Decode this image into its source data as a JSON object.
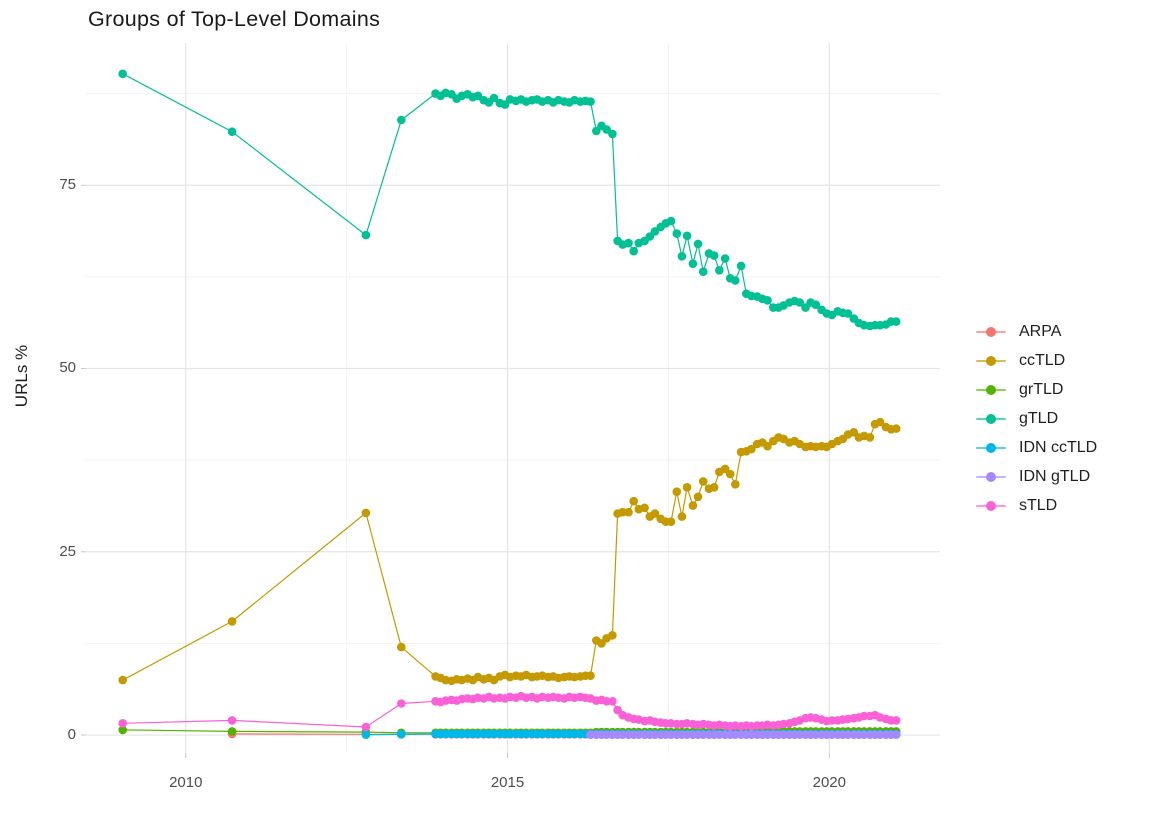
{
  "title": "Groups of Top-Level Domains",
  "y_axis_title": "URLs %",
  "chart_data": {
    "type": "line",
    "title": "Groups of Top-Level Domains",
    "xlabel": "",
    "ylabel": "URLs %",
    "legend_position": "right",
    "grid": true,
    "markers": true,
    "xlim": [
      2008.45,
      2021.72
    ],
    "ylim": [
      -2.45,
      94.4
    ],
    "x_tick_values": [
      2010,
      2015,
      2020
    ],
    "x_tick_labels": [
      "2010",
      "2015",
      "2020"
    ],
    "x_minor_ticks": [
      2012.5,
      2017.5
    ],
    "y_tick_values": [
      0,
      25,
      50,
      75
    ],
    "y_tick_labels": [
      "0",
      "25",
      "50",
      "75"
    ],
    "y_minor_ticks": [
      12.5,
      37.5,
      62.5,
      87.5
    ],
    "grid_major_color": "#e4e4e4",
    "grid_minor_color": "#f2f2f2",
    "axis_text_color": "#4d4d4d",
    "x_dense": [
      2013.88,
      2013.96,
      2014.04,
      2014.13,
      2014.21,
      2014.29,
      2014.38,
      2014.46,
      2014.54,
      2014.63,
      2014.71,
      2014.79,
      2014.88,
      2014.96,
      2015.04,
      2015.13,
      2015.21,
      2015.29,
      2015.38,
      2015.46,
      2015.54,
      2015.63,
      2015.71,
      2015.79,
      2015.88,
      2015.96,
      2016.04,
      2016.13,
      2016.21,
      2016.29,
      2016.38,
      2016.46,
      2016.54,
      2016.63,
      2016.71,
      2016.79,
      2016.88,
      2016.96,
      2017.04,
      2017.13,
      2017.21,
      2017.29,
      2017.38,
      2017.46,
      2017.54,
      2017.63,
      2017.71,
      2017.79,
      2017.88,
      2017.96,
      2018.04,
      2018.13,
      2018.21,
      2018.29,
      2018.38,
      2018.46,
      2018.54,
      2018.63,
      2018.71,
      2018.79,
      2018.88,
      2018.96,
      2019.04,
      2019.13,
      2019.21,
      2019.29,
      2019.38,
      2019.46,
      2019.54,
      2019.63,
      2019.71,
      2019.79,
      2019.88,
      2019.96,
      2020.04,
      2020.13,
      2020.21,
      2020.29,
      2020.38,
      2020.46,
      2020.54,
      2020.63,
      2020.71,
      2020.79,
      2020.88,
      2020.96,
      2021.04
    ],
    "series": [
      {
        "name": "ARPA",
        "color": "#F8766D",
        "dense_from": 0,
        "x_pre": [
          2010.72,
          2012.8,
          2013.35
        ],
        "y_pre": [
          0.15,
          0.1,
          0.1
        ],
        "y_const": 0.1
      },
      {
        "name": "ccTLD",
        "color": "#C49A00",
        "dense_from": 0,
        "x_pre": [
          2009.02,
          2010.72,
          2012.8,
          2013.35
        ],
        "y_pre": [
          7.5,
          15.5,
          30.3,
          12.0
        ],
        "y_dense": [
          8.0,
          7.8,
          7.5,
          7.4,
          7.6,
          7.5,
          7.7,
          7.5,
          7.9,
          7.6,
          7.8,
          7.5,
          8.0,
          8.2,
          7.9,
          8.1,
          8.0,
          8.2,
          7.9,
          8.0,
          8.1,
          7.9,
          8.0,
          7.8,
          7.9,
          8.0,
          7.9,
          8.0,
          8.1,
          8.1,
          12.9,
          12.5,
          13.2,
          13.6,
          30.2,
          30.4,
          30.4,
          31.9,
          30.8,
          31.0,
          29.8,
          30.2,
          29.5,
          29.1,
          29.1,
          33.2,
          29.8,
          33.8,
          31.3,
          32.5,
          34.6,
          33.6,
          33.8,
          35.9,
          36.3,
          35.6,
          34.2,
          38.6,
          38.7,
          39.0,
          39.7,
          39.9,
          39.4,
          40.1,
          40.6,
          40.4,
          39.9,
          40.1,
          39.7,
          39.3,
          39.4,
          39.3,
          39.4,
          39.3,
          39.7,
          40.1,
          40.4,
          41.0,
          41.3,
          40.6,
          40.8,
          40.6,
          42.4,
          42.7,
          42.0,
          41.7,
          41.8
        ]
      },
      {
        "name": "grTLD",
        "color": "#53B400",
        "dense_from": 0,
        "x_pre": [
          2009.02,
          2010.72,
          2012.8,
          2013.35
        ],
        "y_pre": [
          0.7,
          0.5,
          0.4,
          0.3
        ],
        "y_dense": [
          0.3,
          0.3,
          0.3,
          0.3,
          0.3,
          0.3,
          0.3,
          0.3,
          0.3,
          0.3,
          0.3,
          0.3,
          0.3,
          0.3,
          0.3,
          0.3,
          0.3,
          0.3,
          0.3,
          0.3,
          0.3,
          0.3,
          0.3,
          0.3,
          0.3,
          0.3,
          0.3,
          0.3,
          0.3,
          0.3,
          0.4,
          0.4,
          0.4,
          0.4,
          0.4,
          0.4,
          0.4,
          0.4,
          0.4,
          0.4,
          0.4,
          0.4,
          0.4,
          0.4,
          0.4,
          0.4,
          0.4,
          0.4,
          0.4,
          0.4,
          0.4,
          0.4,
          0.4,
          0.4,
          0.4,
          0.4,
          0.4,
          0.5,
          0.5,
          0.5,
          0.5,
          0.5,
          0.5,
          0.5,
          0.5,
          0.5,
          0.5,
          0.5,
          0.5,
          0.5,
          0.5,
          0.5,
          0.5,
          0.5,
          0.5,
          0.5,
          0.5,
          0.5,
          0.5,
          0.5,
          0.5,
          0.5,
          0.5,
          0.5,
          0.5,
          0.5,
          0.5
        ]
      },
      {
        "name": "gTLD",
        "color": "#00C094",
        "dense_from": 0,
        "x_pre": [
          2009.02,
          2010.72,
          2012.8,
          2013.35
        ],
        "y_pre": [
          90.2,
          82.3,
          68.2,
          83.9
        ],
        "y_dense": [
          87.5,
          87.2,
          87.6,
          87.4,
          86.8,
          87.2,
          87.4,
          87.0,
          87.2,
          86.6,
          86.3,
          86.9,
          86.2,
          86.0,
          86.7,
          86.5,
          86.7,
          86.4,
          86.6,
          86.7,
          86.4,
          86.6,
          86.3,
          86.6,
          86.4,
          86.3,
          86.6,
          86.4,
          86.5,
          86.4,
          82.4,
          83.1,
          82.6,
          82.0,
          67.4,
          66.9,
          67.1,
          66.0,
          67.1,
          67.4,
          68.0,
          68.7,
          69.3,
          69.8,
          70.1,
          68.4,
          65.3,
          68.1,
          64.3,
          67.0,
          63.2,
          65.7,
          65.4,
          63.4,
          65.0,
          62.3,
          62.0,
          64.0,
          60.2,
          59.9,
          59.8,
          59.5,
          59.3,
          58.3,
          58.3,
          58.6,
          59.0,
          59.2,
          59.0,
          58.3,
          59.0,
          58.7,
          58.0,
          57.5,
          57.3,
          57.8,
          57.6,
          57.5,
          56.8,
          56.2,
          55.9,
          55.8,
          55.9,
          55.9,
          56.0,
          56.4,
          56.4
        ]
      },
      {
        "name": "IDN ccTLD",
        "color": "#00B6EB",
        "dense_from": 0,
        "x_pre": [
          2012.8,
          2013.35
        ],
        "y_pre": [
          0.05,
          0.1
        ],
        "y_const": 0.15
      },
      {
        "name": "IDN gTLD",
        "color": "#A58AFF",
        "dense_from": 29,
        "x_pre": [],
        "y_pre": [],
        "y_const": 0.05
      },
      {
        "name": "sTLD",
        "color": "#FB61D7",
        "dense_from": 0,
        "x_pre": [
          2009.02,
          2010.72,
          2012.8,
          2013.35
        ],
        "y_pre": [
          1.6,
          2.0,
          1.1,
          4.3
        ],
        "y_dense": [
          4.6,
          4.5,
          4.7,
          4.8,
          4.7,
          4.9,
          5.0,
          4.9,
          5.1,
          5.0,
          5.2,
          5.0,
          5.1,
          5.0,
          5.2,
          5.1,
          5.3,
          5.1,
          5.2,
          5.0,
          5.2,
          5.1,
          5.2,
          5.1,
          5.0,
          5.2,
          5.1,
          5.2,
          5.1,
          5.0,
          4.7,
          4.8,
          4.6,
          4.6,
          3.4,
          2.7,
          2.4,
          2.2,
          2.1,
          1.9,
          2.0,
          1.8,
          1.7,
          1.6,
          1.6,
          1.5,
          1.5,
          1.6,
          1.5,
          1.4,
          1.5,
          1.4,
          1.3,
          1.4,
          1.3,
          1.2,
          1.3,
          1.2,
          1.3,
          1.2,
          1.3,
          1.3,
          1.4,
          1.3,
          1.4,
          1.5,
          1.6,
          1.8,
          2.0,
          2.3,
          2.4,
          2.3,
          2.1,
          1.9,
          2.0,
          2.0,
          2.1,
          2.2,
          2.3,
          2.4,
          2.6,
          2.6,
          2.7,
          2.4,
          2.2,
          2.0,
          2.0
        ]
      }
    ]
  }
}
